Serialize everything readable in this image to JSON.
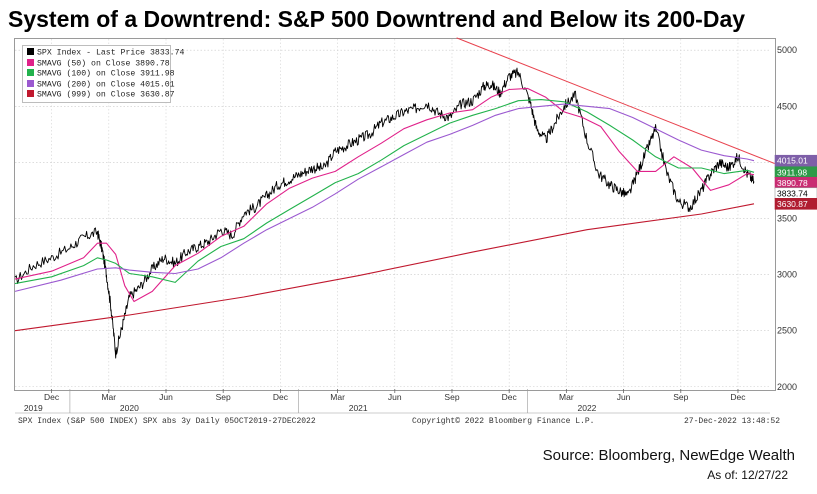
{
  "title": "System of a Downtrend: S&P 500 Downtrend and Below its 200-Day",
  "source": "Source: Bloomberg, NewEdge Wealth",
  "as_of": "As of: 12/27/22",
  "footer": {
    "left": "SPX Index (S&P 500 INDEX) SPX abs 3y  Daily 05OCT2019-27DEC2022",
    "center": "Copyright© 2022 Bloomberg Finance L.P.",
    "right": "27-Dec-2022 13:48:52"
  },
  "legend": [
    {
      "label": "SPX Index - Last Price 3833.74",
      "color": "#000000"
    },
    {
      "label": "SMAVG (50)  on Close  3890.78",
      "color": "#e0218a"
    },
    {
      "label": "SMAVG (100)  on Close 3911.98",
      "color": "#22b24c"
    },
    {
      "label": "SMAVG (200)  on Close 4015.01",
      "color": "#9b59d0"
    },
    {
      "label": "SMAVG (999)  on Close 3630.87",
      "color": "#c0182e"
    }
  ],
  "chart_data": {
    "type": "line",
    "x_range": [
      "2019-10-05",
      "2022-12-27"
    ],
    "ylim": [
      1980,
      5100
    ],
    "y_ticks": [
      2000,
      2500,
      3000,
      3500,
      4000,
      4500,
      5000
    ],
    "x_month_labels": [
      {
        "label": "Dec",
        "t": 0.16
      },
      {
        "label": "Mar",
        "t": 0.41
      },
      {
        "label": "Jun",
        "t": 0.66
      },
      {
        "label": "Sep",
        "t": 0.91
      },
      {
        "label": "Dec",
        "t": 1.16
      },
      {
        "label": "Mar",
        "t": 1.41
      },
      {
        "label": "Jun",
        "t": 1.66
      },
      {
        "label": "Sep",
        "t": 1.91
      },
      {
        "label": "Dec",
        "t": 2.16
      },
      {
        "label": "Mar",
        "t": 2.41
      },
      {
        "label": "Jun",
        "t": 2.66
      },
      {
        "label": "Sep",
        "t": 2.91
      },
      {
        "label": "Dec",
        "t": 3.16
      }
    ],
    "x_year_labels": [
      {
        "label": "2019",
        "t": 0.08
      },
      {
        "label": "2020",
        "t": 0.5
      },
      {
        "label": "2021",
        "t": 1.5
      },
      {
        "label": "2022",
        "t": 2.5
      }
    ],
    "series": [
      {
        "name": "SPX Index - Last Price",
        "color": "#000000",
        "t": [
          0,
          0.08,
          0.16,
          0.24,
          0.3,
          0.36,
          0.38,
          0.4,
          0.42,
          0.44,
          0.47,
          0.5,
          0.55,
          0.6,
          0.65,
          0.7,
          0.75,
          0.8,
          0.85,
          0.9,
          0.95,
          1.0,
          1.05,
          1.1,
          1.15,
          1.2,
          1.25,
          1.3,
          1.35,
          1.4,
          1.45,
          1.5,
          1.55,
          1.6,
          1.65,
          1.7,
          1.75,
          1.8,
          1.85,
          1.9,
          1.95,
          2.0,
          2.05,
          2.08,
          2.12,
          2.16,
          2.2,
          2.25,
          2.28,
          2.32,
          2.36,
          2.4,
          2.45,
          2.5,
          2.55,
          2.6,
          2.64,
          2.68,
          2.72,
          2.76,
          2.8,
          2.85,
          2.9,
          2.95,
          3.0,
          3.04,
          3.08,
          3.12,
          3.16,
          3.2,
          3.23
        ],
        "values": [
          2940,
          3080,
          3150,
          3240,
          3330,
          3380,
          3230,
          3000,
          2700,
          2300,
          2550,
          2800,
          2900,
          3050,
          3150,
          3100,
          3200,
          3250,
          3300,
          3400,
          3350,
          3550,
          3600,
          3700,
          3800,
          3850,
          3900,
          3950,
          3950,
          4100,
          4150,
          4200,
          4250,
          4350,
          4400,
          4450,
          4480,
          4530,
          4440,
          4400,
          4520,
          4550,
          4680,
          4700,
          4620,
          4770,
          4800,
          4550,
          4300,
          4200,
          4350,
          4500,
          4600,
          4200,
          3900,
          3800,
          3750,
          3700,
          3900,
          4100,
          4300,
          3900,
          3650,
          3600,
          3750,
          3900,
          4000,
          3950,
          4050,
          3900,
          3830
        ]
      },
      {
        "name": "SMAVG (50)",
        "color": "#e0218a",
        "t": [
          0,
          0.16,
          0.3,
          0.36,
          0.4,
          0.44,
          0.48,
          0.52,
          0.6,
          0.7,
          0.8,
          0.9,
          1.0,
          1.1,
          1.2,
          1.3,
          1.4,
          1.5,
          1.6,
          1.7,
          1.8,
          1.9,
          2.0,
          2.08,
          2.16,
          2.24,
          2.32,
          2.4,
          2.48,
          2.56,
          2.64,
          2.72,
          2.8,
          2.88,
          2.96,
          3.04,
          3.12,
          3.2,
          3.23
        ],
        "values": [
          2960,
          3030,
          3150,
          3280,
          3280,
          3180,
          2900,
          2760,
          2850,
          3080,
          3190,
          3340,
          3430,
          3630,
          3770,
          3860,
          3920,
          4050,
          4170,
          4300,
          4380,
          4440,
          4470,
          4580,
          4650,
          4660,
          4580,
          4450,
          4400,
          4320,
          4100,
          3920,
          3920,
          4050,
          3950,
          3750,
          3800,
          3900,
          3890
        ]
      },
      {
        "name": "SMAVG (100)",
        "color": "#22b24c",
        "t": [
          0,
          0.16,
          0.3,
          0.36,
          0.4,
          0.44,
          0.5,
          0.6,
          0.7,
          0.8,
          0.9,
          1.0,
          1.1,
          1.2,
          1.3,
          1.4,
          1.5,
          1.6,
          1.7,
          1.8,
          1.9,
          2.0,
          2.1,
          2.2,
          2.3,
          2.4,
          2.5,
          2.6,
          2.7,
          2.8,
          2.9,
          3.0,
          3.1,
          3.2,
          3.23
        ],
        "values": [
          2920,
          2980,
          3080,
          3150,
          3130,
          3100,
          3010,
          2980,
          2930,
          3120,
          3250,
          3320,
          3460,
          3580,
          3700,
          3820,
          3900,
          4020,
          4150,
          4250,
          4350,
          4420,
          4480,
          4550,
          4560,
          4540,
          4450,
          4330,
          4200,
          4050,
          3950,
          3950,
          3900,
          3930,
          3912
        ]
      },
      {
        "name": "SMAVG (200)",
        "color": "#9b59d0",
        "t": [
          0,
          0.2,
          0.36,
          0.44,
          0.5,
          0.6,
          0.7,
          0.8,
          0.9,
          1.0,
          1.1,
          1.2,
          1.3,
          1.4,
          1.5,
          1.6,
          1.7,
          1.8,
          1.9,
          2.0,
          2.1,
          2.2,
          2.3,
          2.4,
          2.5,
          2.6,
          2.7,
          2.8,
          2.9,
          3.0,
          3.1,
          3.2,
          3.23
        ],
        "values": [
          2850,
          2950,
          3050,
          3060,
          3040,
          3020,
          3010,
          3050,
          3150,
          3280,
          3400,
          3500,
          3600,
          3720,
          3850,
          3960,
          4070,
          4180,
          4250,
          4330,
          4420,
          4480,
          4500,
          4520,
          4500,
          4480,
          4400,
          4300,
          4200,
          4110,
          4060,
          4030,
          4015
        ]
      },
      {
        "name": "SMAVG (999)",
        "color": "#c0182e",
        "t": [
          0,
          0.5,
          1.0,
          1.5,
          2.0,
          2.5,
          3.0,
          3.23
        ],
        "values": [
          2500,
          2640,
          2800,
          2990,
          3200,
          3400,
          3540,
          3631
        ]
      },
      {
        "name": "Trendline",
        "color": "#e8434f",
        "t": [
          1.93,
          3.32
        ],
        "values": [
          5110,
          3990
        ]
      }
    ],
    "last_value_tags": [
      {
        "label": "4015.01",
        "value": 4015.01,
        "color": "#7e5fa8",
        "text_color": "#ffffff"
      },
      {
        "label": "3911.98",
        "value": 3911.98,
        "color": "#2e9a48",
        "text_color": "#ffffff"
      },
      {
        "label": "3890.78",
        "value": 3890.78,
        "color": "#c92c72",
        "text_color": "#ffffff"
      },
      {
        "label": "3833.74",
        "value": 3833.74,
        "color": "#ffffff",
        "text_color": "#000000"
      },
      {
        "label": "3630.87",
        "value": 3630.87,
        "color": "#b01c30",
        "text_color": "#ffffff"
      }
    ]
  }
}
